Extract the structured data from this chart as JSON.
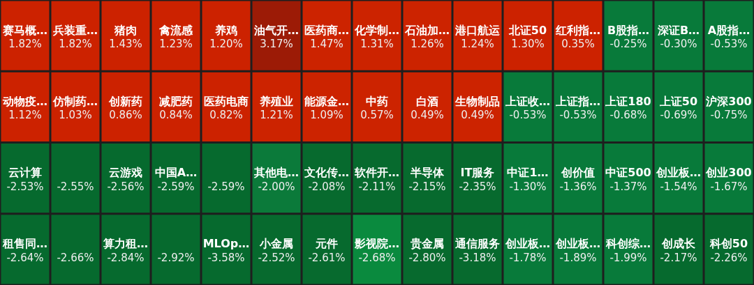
{
  "chart_data": {
    "type": "other",
    "categories": [
      "赛马概…",
      "兵装重…",
      "猪肉",
      "禽流感",
      "养鸡",
      "油气开…",
      "医药商…",
      "化学制…",
      "石油加…",
      "港口航运",
      "北证50",
      "红利指…",
      "B股指…",
      "深证B…",
      "A股指…",
      "动物疫…",
      "仿制药…",
      "创新药",
      "减肥药",
      "医药电商",
      "养殖业",
      "能源金…",
      "中药",
      "白酒",
      "生物制品",
      "上证收…",
      "上证指…",
      "上证180",
      "上证50",
      "沪深300",
      "云计算",
      null,
      "云游戏",
      "中国A…",
      null,
      "其他电…",
      "文化传…",
      "软件开…",
      "半导体",
      "IT服务",
      "中证1…",
      "创价值",
      "中证500",
      "创业板…",
      "创业300",
      "租售同…",
      null,
      "算力租…",
      null,
      "MLOp…",
      "小金属",
      "元件",
      "影视院…",
      "贵金属",
      "通信服务",
      "创业板…",
      "创业板…",
      "科创综…",
      "创成长",
      "科创50"
    ],
    "values": [
      1.82,
      1.82,
      1.43,
      1.23,
      1.2,
      3.17,
      1.47,
      1.31,
      1.26,
      1.24,
      1.3,
      0.35,
      -0.25,
      -0.3,
      -0.53,
      1.12,
      1.03,
      0.86,
      0.84,
      0.82,
      1.21,
      1.09,
      0.57,
      0.49,
      0.49,
      -0.53,
      -0.53,
      -0.68,
      -0.69,
      -0.75,
      -2.53,
      -2.55,
      -2.56,
      -2.59,
      -2.59,
      -2.0,
      -2.08,
      -2.11,
      -2.15,
      -2.35,
      -1.3,
      -1.36,
      -1.37,
      -1.54,
      -1.67,
      -2.64,
      -2.66,
      -2.84,
      -2.92,
      -3.58,
      -2.52,
      -2.61,
      -2.68,
      -2.8,
      -3.18,
      -1.78,
      -1.89,
      -1.99,
      -2.17,
      -2.26
    ],
    "value_labels": [
      "1.82%",
      "1.82%",
      "1.43%",
      "1.23%",
      "1.20%",
      "3.17%",
      "1.47%",
      "1.31%",
      "1.26%",
      "1.24%",
      "1.30%",
      "0.35%",
      "-0.25%",
      "-0.30%",
      "-0.53%",
      "1.12%",
      "1.03%",
      "0.86%",
      "0.84%",
      "0.82%",
      "1.21%",
      "1.09%",
      "0.57%",
      "0.49%",
      "0.49%",
      "-0.53%",
      "-0.53%",
      "-0.68%",
      "-0.69%",
      "-0.75%",
      "-2.53%",
      "-2.55%",
      "-2.56%",
      "-2.59%",
      "-2.59%",
      "-2.00%",
      "-2.08%",
      "-2.11%",
      "-2.15%",
      "-2.35%",
      "-1.30%",
      "-1.36%",
      "-1.37%",
      "-1.54%",
      "-1.67%",
      "-2.64%",
      "-2.66%",
      "-2.84%",
      "-2.92%",
      "-3.58%",
      "-2.52%",
      "-2.61%",
      "-2.68%",
      "-2.80%",
      "-3.18%",
      "-1.78%",
      "-1.89%",
      "-1.99%",
      "-2.17%",
      "-2.26%"
    ],
    "colors": [
      "#cc2200",
      "#cc2200",
      "#cc2200",
      "#cc2200",
      "#cc2200",
      "#9c1b06",
      "#cc2300",
      "#cc2300",
      "#cc2300",
      "#cc2300",
      "#cc2200",
      "#cc2200",
      "#087a3a",
      "#087a3a",
      "#087a3a",
      "#cc2200",
      "#cc2200",
      "#cc2200",
      "#cc2200",
      "#cc2200",
      "#cc2300",
      "#cc2300",
      "#cc2300",
      "#cc2300",
      "#cc2300",
      "#087a3a",
      "#087a3a",
      "#087a3a",
      "#087a3a",
      "#087a3a",
      "#066a2e",
      "#066a2e",
      "#066a2e",
      "#066a2e",
      "#066a2e",
      "#0b7a3a",
      "#076a2e",
      "#076a2e",
      "#076a2e",
      "#076a2e",
      "#087a3a",
      "#087a3a",
      "#087a3a",
      "#087a3a",
      "#087a3a",
      "#066a2e",
      "#066a2e",
      "#066a2e",
      "#066a2e",
      "#066a2e",
      "#076a2e",
      "#076a2e",
      "#0a8a3e",
      "#076a2e",
      "#076a2e",
      "#087a3a",
      "#087a3a",
      "#087a3a",
      "#066a2e",
      "#066a2e"
    ]
  }
}
